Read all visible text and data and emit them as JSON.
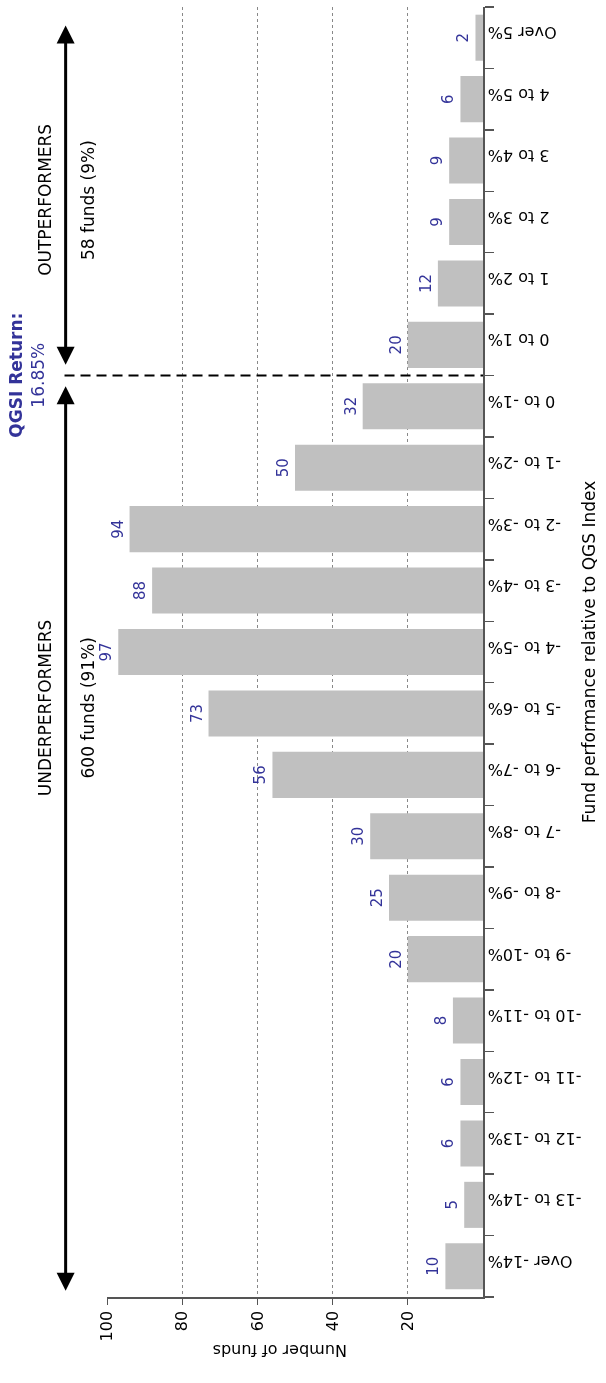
{
  "chart_data": {
    "type": "bar",
    "orientation": "horizontal",
    "xlabel": "Number of funds",
    "ylabel": "Fund performance relative to QGS Index",
    "categories": [
      "Over 5%",
      "4 to 5%",
      "3 to 4%",
      "2 to 3%",
      "1 to 2%",
      "0 to 1%",
      "0 to -1%",
      "-1 to -2%",
      "-2 to -3%",
      "-3 to -4%",
      "-4 to -5%",
      "-5 to -6%",
      "-6 to -7%",
      "-7 to -8%",
      "-8 to -9%",
      "-9 to -10%",
      "-10 to -11%",
      "-11 to -12%",
      "-12 to -13%",
      "-13 to -14%",
      "Over -14%"
    ],
    "values": [
      2,
      6,
      9,
      9,
      12,
      20,
      32,
      50,
      94,
      88,
      97,
      73,
      56,
      30,
      25,
      20,
      8,
      6,
      6,
      5,
      10
    ],
    "color": "#c0c0c0",
    "data_labels": true,
    "xlim": [
      100,
      0
    ],
    "xticks": [
      20,
      40,
      60,
      80,
      100
    ],
    "grid": "x",
    "annotations": [
      "QGSI Return:\n16.85%",
      "OUTPERFORMERS",
      "58 funds (9%)",
      "UNDERPERFORMERS",
      "600 funds (91%)"
    ]
  }
}
